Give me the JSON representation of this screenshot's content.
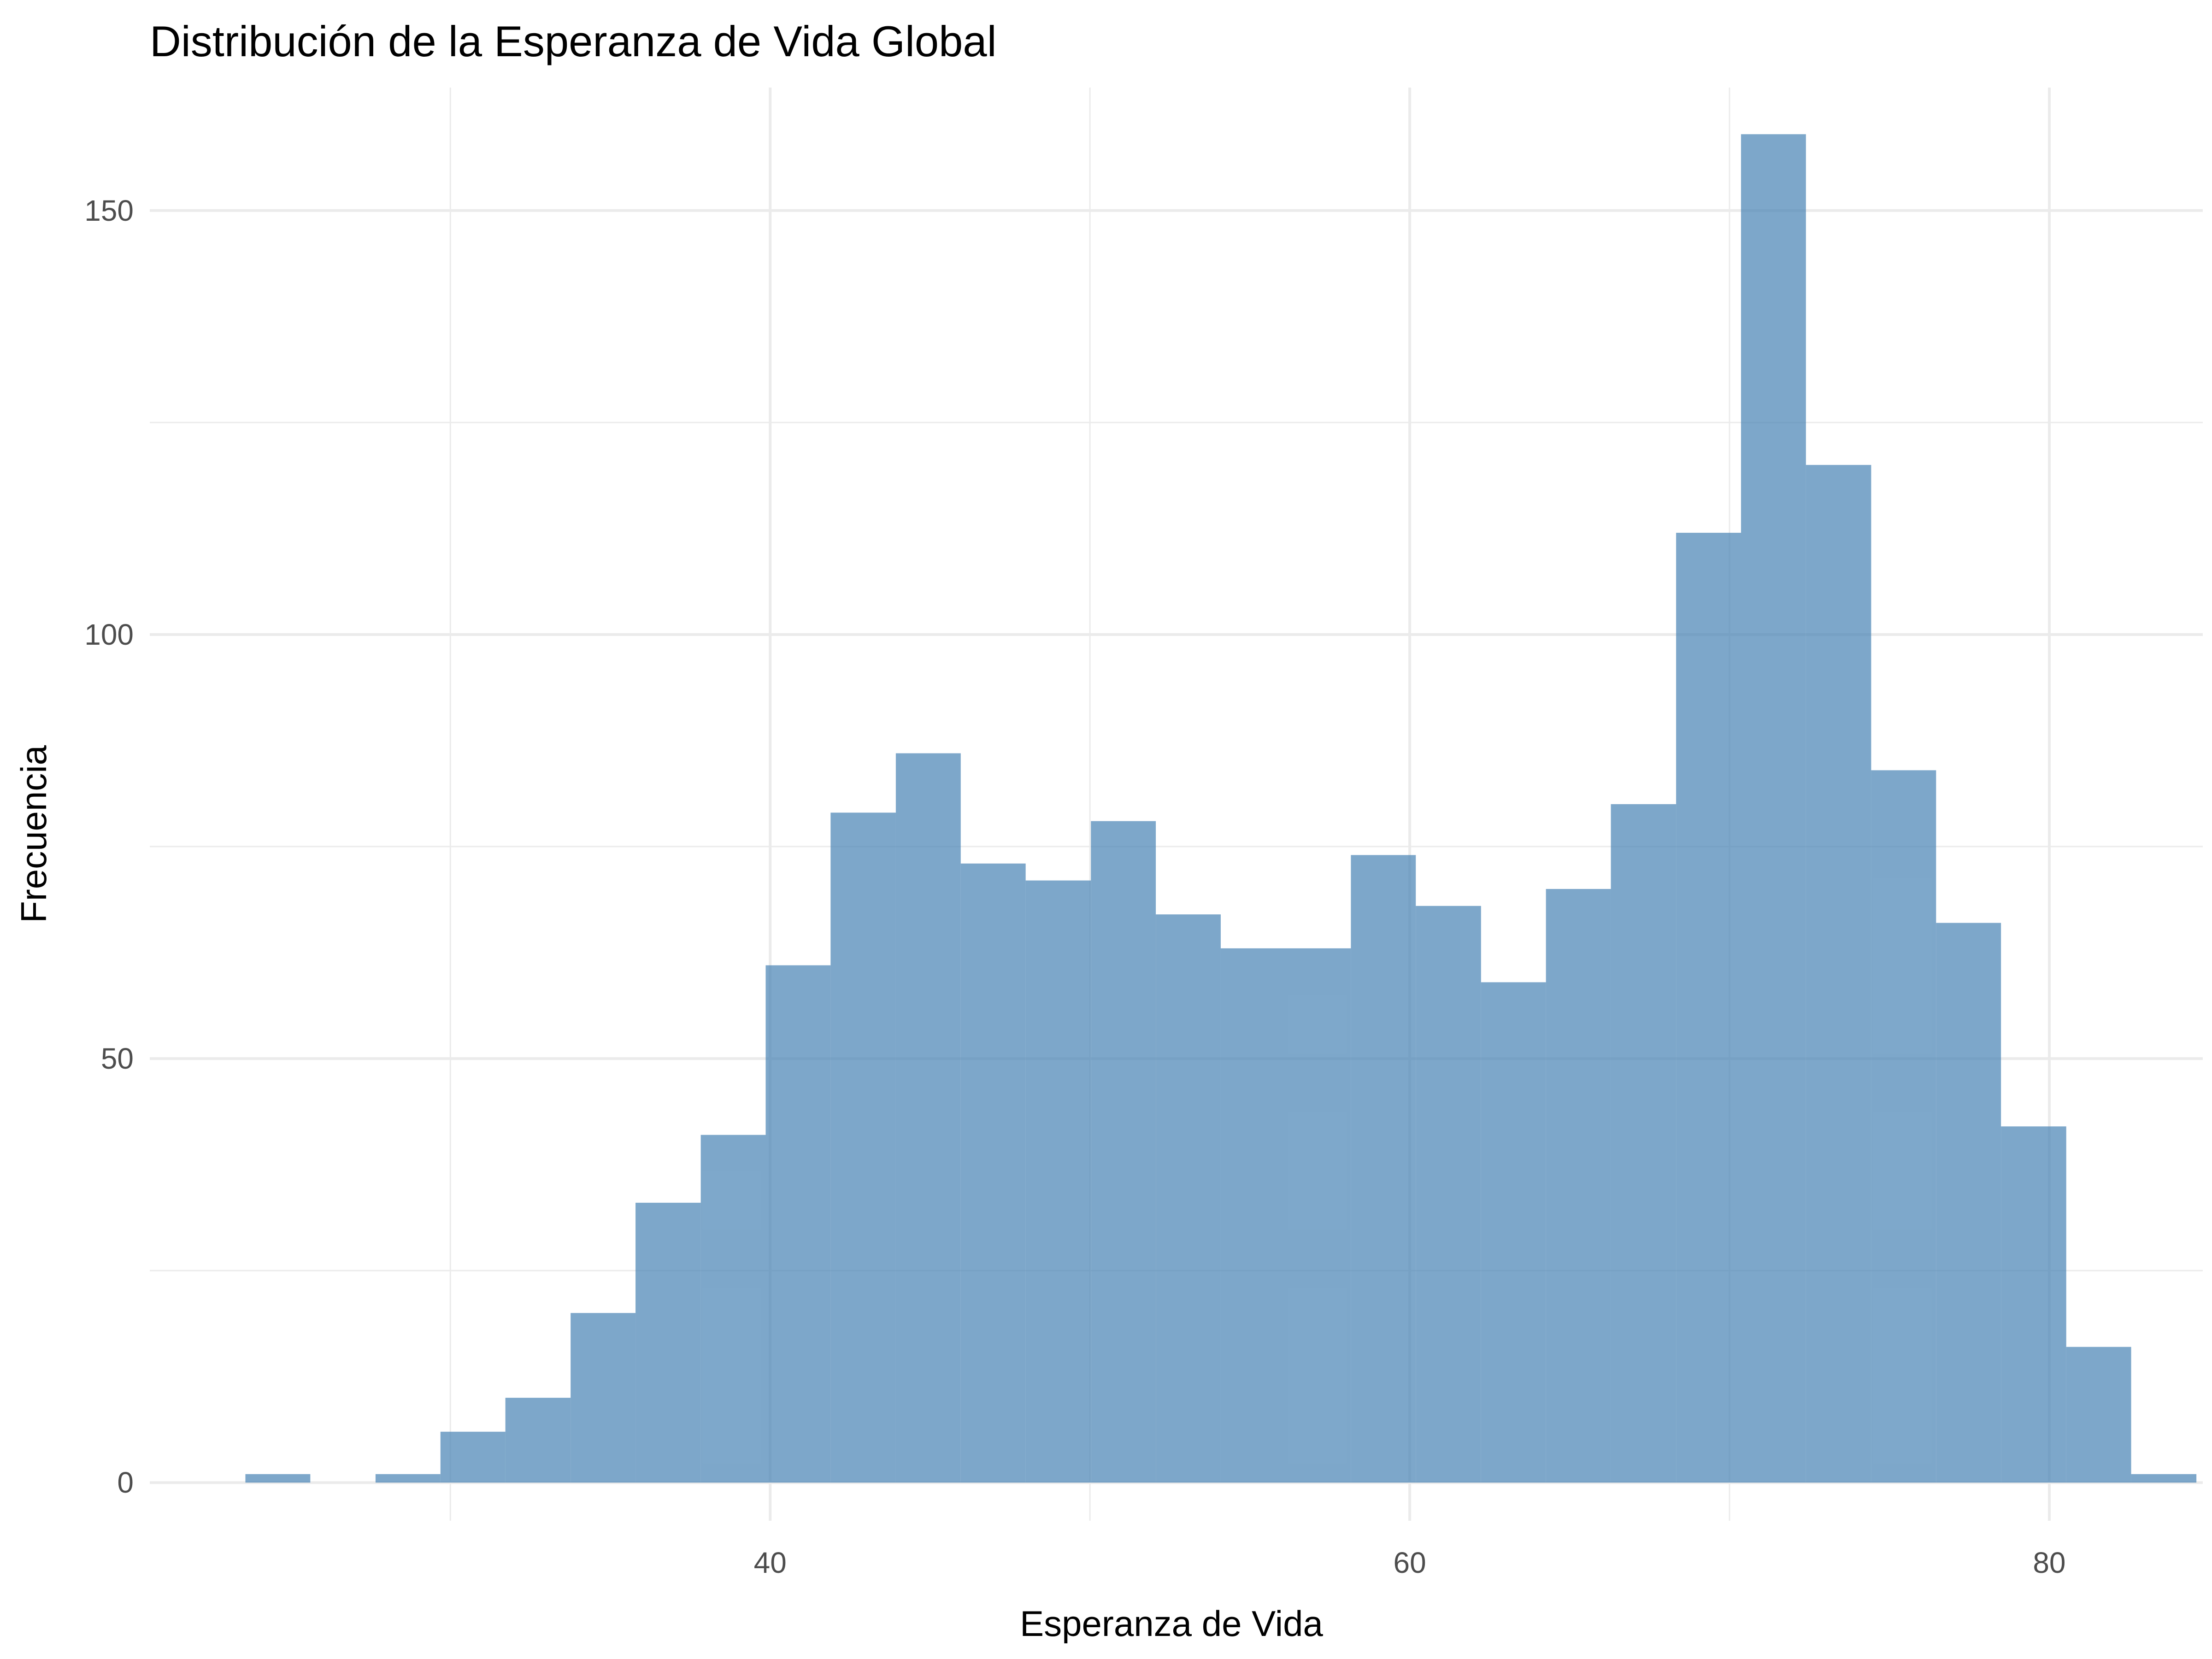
{
  "chart_data": {
    "type": "bar",
    "title": "Distribución de la Esperanza de Vida Global",
    "xlabel": "Esperanza de Vida",
    "ylabel": "Frecuencia",
    "xlim": [
      20.6,
      84.8
    ],
    "ylim": [
      -4.5,
      164.5
    ],
    "x_ticks": [
      40,
      60,
      80
    ],
    "y_ticks": [
      0,
      50,
      100,
      150
    ],
    "x_minor": [
      30,
      50,
      70
    ],
    "y_minor": [
      25,
      75,
      125
    ],
    "grid": true,
    "bin_width": 2.0333,
    "bars": [
      {
        "x0": 23.59,
        "x1": 25.62,
        "count": 1
      },
      {
        "x0": 25.62,
        "x1": 27.66,
        "count": 0
      },
      {
        "x0": 27.66,
        "x1": 29.69,
        "count": 1
      },
      {
        "x0": 29.69,
        "x1": 31.72,
        "count": 6
      },
      {
        "x0": 31.72,
        "x1": 33.76,
        "count": 10
      },
      {
        "x0": 33.76,
        "x1": 35.79,
        "count": 20
      },
      {
        "x0": 35.79,
        "x1": 37.83,
        "count": 33
      },
      {
        "x0": 37.83,
        "x1": 39.86,
        "count": 41
      },
      {
        "x0": 39.86,
        "x1": 41.89,
        "count": 61
      },
      {
        "x0": 41.89,
        "x1": 43.93,
        "count": 79
      },
      {
        "x0": 43.93,
        "x1": 45.96,
        "count": 86
      },
      {
        "x0": 45.96,
        "x1": 47.99,
        "count": 73
      },
      {
        "x0": 47.99,
        "x1": 50.03,
        "count": 71
      },
      {
        "x0": 50.03,
        "x1": 52.06,
        "count": 78
      },
      {
        "x0": 52.06,
        "x1": 54.09,
        "count": 67
      },
      {
        "x0": 54.09,
        "x1": 56.13,
        "count": 63
      },
      {
        "x0": 56.13,
        "x1": 58.16,
        "count": 63
      },
      {
        "x0": 58.16,
        "x1": 60.19,
        "count": 74
      },
      {
        "x0": 60.19,
        "x1": 62.23,
        "count": 68
      },
      {
        "x0": 62.23,
        "x1": 64.26,
        "count": 59
      },
      {
        "x0": 64.26,
        "x1": 66.29,
        "count": 70
      },
      {
        "x0": 66.29,
        "x1": 68.33,
        "count": 80
      },
      {
        "x0": 68.33,
        "x1": 70.36,
        "count": 112
      },
      {
        "x0": 70.36,
        "x1": 72.39,
        "count": 159
      },
      {
        "x0": 72.39,
        "x1": 74.43,
        "count": 120
      },
      {
        "x0": 74.43,
        "x1": 76.46,
        "count": 84
      },
      {
        "x0": 76.46,
        "x1": 78.49,
        "count": 66
      },
      {
        "x0": 78.49,
        "x1": 80.53,
        "count": 42
      },
      {
        "x0": 80.53,
        "x1": 82.56,
        "count": 16
      },
      {
        "x0": 82.56,
        "x1": 84.6,
        "count": 1
      }
    ],
    "colors": {
      "bar": "#4682b4"
    }
  }
}
